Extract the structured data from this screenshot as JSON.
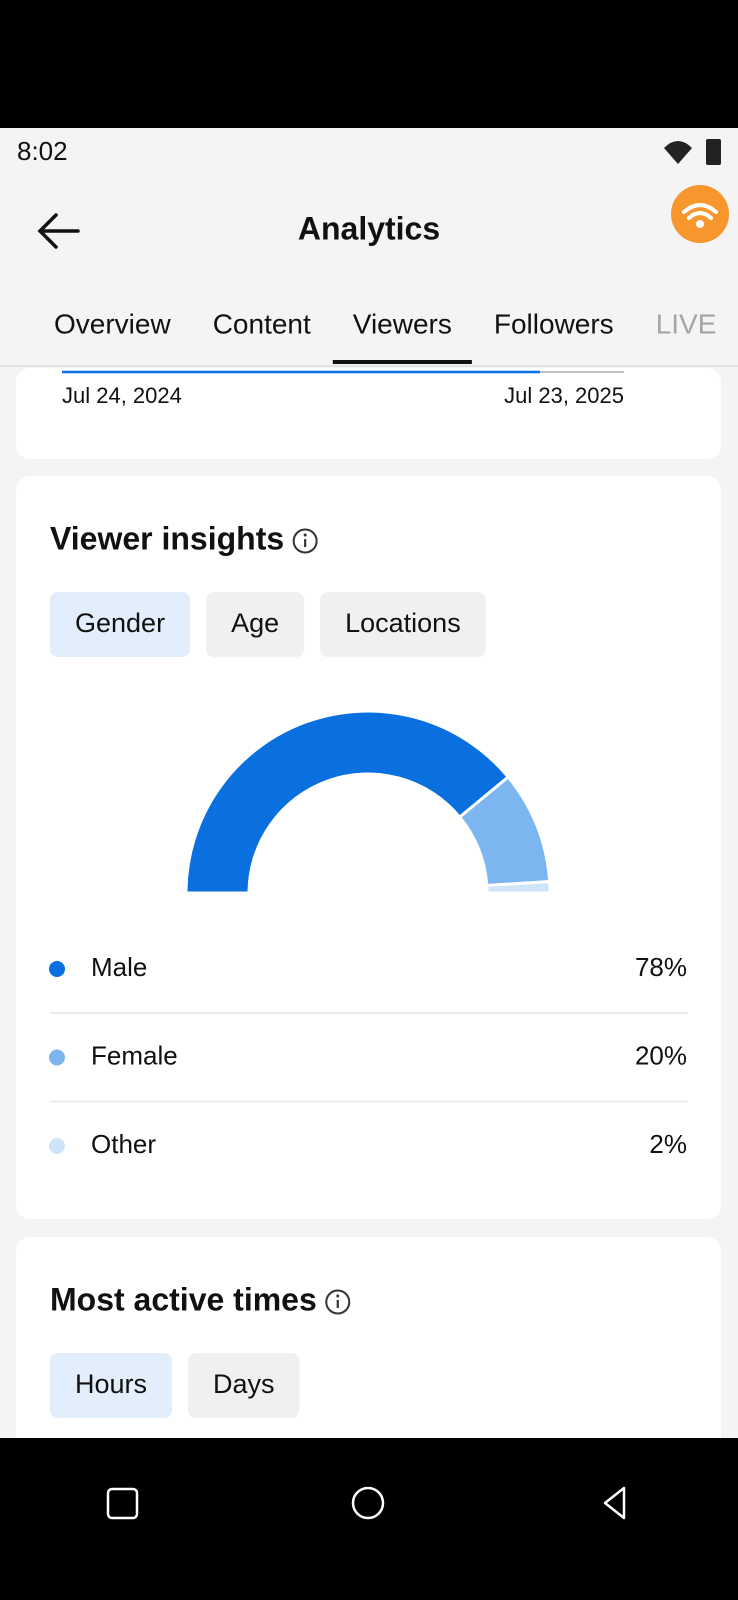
{
  "status_bar": {
    "time": "8:02"
  },
  "header": {
    "title": "Analytics"
  },
  "tabs": [
    "Overview",
    "Content",
    "Viewers",
    "Followers",
    "LIVE"
  ],
  "active_tab": 2,
  "trend_card": {
    "start_date": "Jul 24, 2024",
    "end_date": "Jul 23, 2025"
  },
  "viewer_insights": {
    "title": "Viewer insights",
    "filters": [
      "Gender",
      "Age",
      "Locations"
    ]
  },
  "chart_data": {
    "type": "half-donut",
    "categories": [
      "Male",
      "Female",
      "Other"
    ],
    "values": [
      78,
      20,
      2
    ],
    "value_labels": [
      "78%",
      "20%",
      "2%"
    ],
    "colors": [
      "#0a6fdf",
      "#7cb6f0",
      "#cfe4f9"
    ]
  },
  "active_times": {
    "title": "Most active times",
    "filters": [
      "Hours",
      "Days"
    ]
  }
}
